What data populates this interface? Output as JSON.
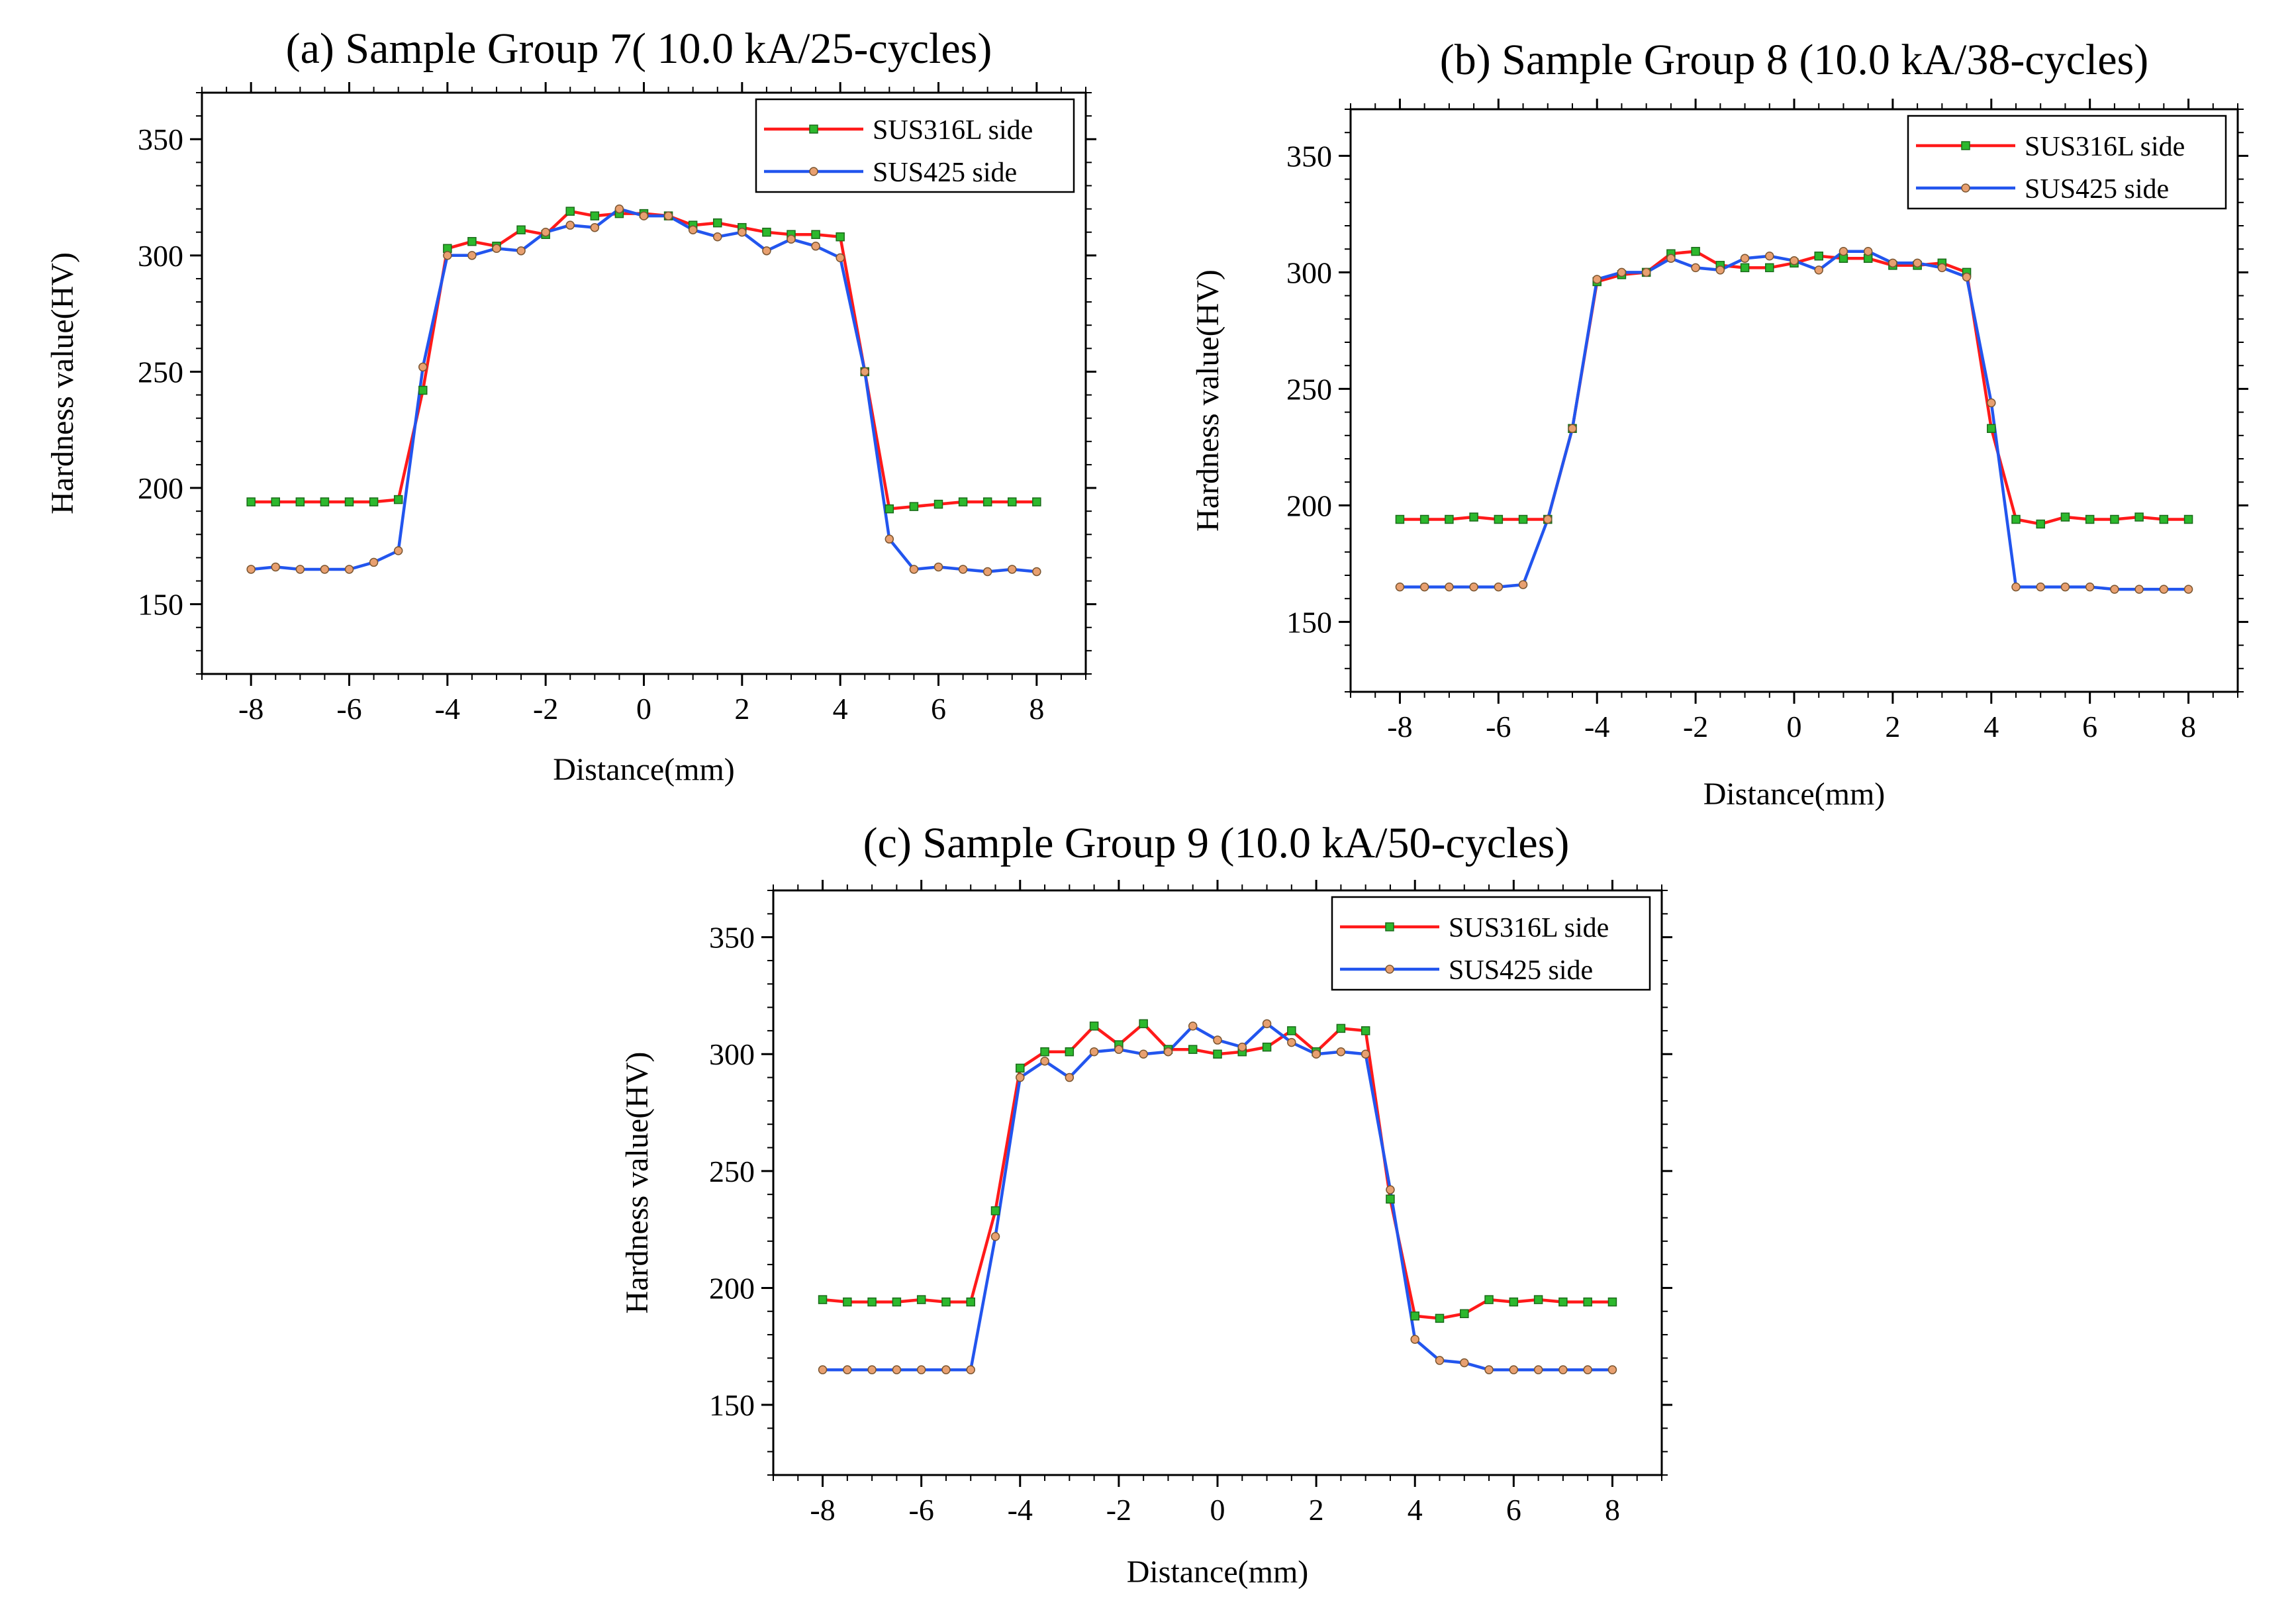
{
  "chart_data": [
    {
      "id": "a",
      "type": "line",
      "title": "(a) Sample Group 7( 10.0 kA/25-cycles)",
      "xlabel": "Distance(mm)",
      "ylabel": "Hardness value(HV)",
      "xlim": [
        -9,
        9
      ],
      "ylim": [
        120,
        370
      ],
      "xticks": [
        -8,
        -6,
        -4,
        -2,
        0,
        2,
        4,
        6,
        8
      ],
      "yticks": [
        150,
        200,
        250,
        300,
        350
      ],
      "legend": "top-right",
      "x": [
        -8,
        -7.5,
        -7,
        -6.5,
        -6,
        -5.5,
        -5,
        -4.5,
        -4,
        -3.5,
        -3,
        -2.5,
        -2,
        -1.5,
        -1,
        -0.5,
        0,
        0.5,
        1,
        1.5,
        2,
        2.5,
        3,
        3.5,
        4,
        4.5,
        5,
        5.5,
        6,
        6.5,
        7,
        7.5,
        8
      ],
      "series": [
        {
          "name": "SUS316L side",
          "color": "#ff1a1a",
          "marker_color": "#2db82d",
          "marker": "square",
          "values": [
            194,
            194,
            194,
            194,
            194,
            194,
            195,
            242,
            303,
            306,
            304,
            311,
            309,
            319,
            317,
            318,
            318,
            317,
            313,
            314,
            312,
            310,
            309,
            309,
            308,
            250,
            191,
            192,
            193,
            194,
            194,
            194,
            194
          ]
        },
        {
          "name": "SUS425 side",
          "color": "#2255ee",
          "marker_color": "#e8a070",
          "marker": "circle",
          "values": [
            165,
            166,
            165,
            165,
            165,
            168,
            173,
            252,
            300,
            300,
            303,
            302,
            310,
            313,
            312,
            320,
            317,
            317,
            311,
            308,
            310,
            302,
            307,
            304,
            299,
            250,
            178,
            165,
            166,
            165,
            164,
            165,
            164
          ]
        }
      ]
    },
    {
      "id": "b",
      "type": "line",
      "title": "(b) Sample Group 8 (10.0 kA/38-cycles)",
      "xlabel": "Distance(mm)",
      "ylabel": "Hardness value(HV)",
      "xlim": [
        -9,
        9
      ],
      "ylim": [
        120,
        370
      ],
      "xticks": [
        -8,
        -6,
        -4,
        -2,
        0,
        2,
        4,
        6,
        8
      ],
      "yticks": [
        150,
        200,
        250,
        300,
        350
      ],
      "legend": "top-right",
      "x": [
        -8,
        -7.5,
        -7,
        -6.5,
        -6,
        -5.5,
        -5,
        -4.5,
        -4,
        -3.5,
        -3,
        -2.5,
        -2,
        -1.5,
        -1,
        -0.5,
        0,
        0.5,
        1,
        1.5,
        2,
        2.5,
        3,
        3.5,
        4,
        4.5,
        5,
        5.5,
        6,
        6.5,
        7,
        7.5,
        8
      ],
      "series": [
        {
          "name": "SUS316L side",
          "color": "#ff1a1a",
          "marker_color": "#2db82d",
          "marker": "square",
          "values": [
            194,
            194,
            194,
            195,
            194,
            194,
            194,
            233,
            296,
            299,
            300,
            308,
            309,
            303,
            302,
            302,
            304,
            307,
            306,
            306,
            303,
            303,
            304,
            300,
            233,
            194,
            192,
            195,
            194,
            194,
            195,
            194,
            194
          ]
        },
        {
          "name": "SUS425 side",
          "color": "#2255ee",
          "marker_color": "#e8a070",
          "marker": "circle",
          "values": [
            165,
            165,
            165,
            165,
            165,
            166,
            194,
            233,
            297,
            300,
            300,
            306,
            302,
            301,
            306,
            307,
            305,
            301,
            309,
            309,
            304,
            304,
            302,
            298,
            244,
            165,
            165,
            165,
            165,
            164,
            164,
            164,
            164
          ]
        }
      ]
    },
    {
      "id": "c",
      "type": "line",
      "title": "(c) Sample Group 9 (10.0 kA/50-cycles)",
      "xlabel": "Distance(mm)",
      "ylabel": "Hardness value(HV)",
      "xlim": [
        -9,
        9
      ],
      "ylim": [
        120,
        370
      ],
      "xticks": [
        -8,
        -6,
        -4,
        -2,
        0,
        2,
        4,
        6,
        8
      ],
      "yticks": [
        150,
        200,
        250,
        300,
        350
      ],
      "legend": "top-right",
      "x": [
        -8,
        -7.5,
        -7,
        -6.5,
        -6,
        -5.5,
        -5,
        -4.5,
        -4,
        -3.5,
        -3,
        -2.5,
        -2,
        -1.5,
        -1,
        -0.5,
        0,
        0.5,
        1,
        1.5,
        2,
        2.5,
        3,
        3.5,
        4,
        4.5,
        5,
        5.5,
        6,
        6.5,
        7,
        7.5,
        8
      ],
      "series": [
        {
          "name": "SUS316L side",
          "color": "#ff1a1a",
          "marker_color": "#2db82d",
          "marker": "square",
          "values": [
            195,
            194,
            194,
            194,
            195,
            194,
            194,
            233,
            294,
            301,
            301,
            312,
            304,
            313,
            302,
            302,
            300,
            301,
            303,
            310,
            301,
            311,
            310,
            238,
            188,
            187,
            189,
            195,
            194,
            195,
            194,
            194,
            194
          ]
        },
        {
          "name": "SUS425 side",
          "color": "#2255ee",
          "marker_color": "#e8a070",
          "marker": "circle",
          "values": [
            165,
            165,
            165,
            165,
            165,
            165,
            165,
            222,
            290,
            297,
            290,
            301,
            302,
            300,
            301,
            312,
            306,
            303,
            313,
            305,
            300,
            301,
            300,
            242,
            178,
            169,
            168,
            165,
            165,
            165,
            165,
            165,
            165
          ]
        }
      ]
    }
  ]
}
